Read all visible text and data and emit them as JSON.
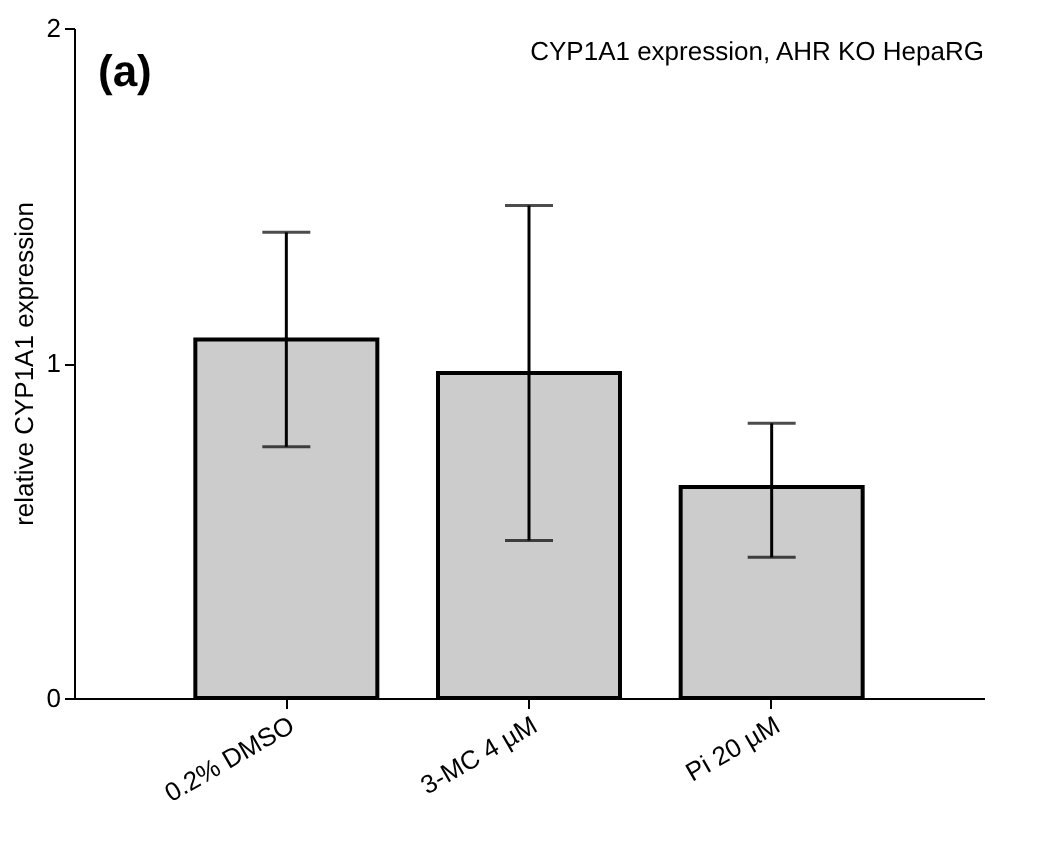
{
  "chart_data": {
    "type": "bar",
    "title": "CYP1A1 expression, AHR KO HepaRG",
    "ylabel": "relative CYP1A1 expression",
    "annotations": [
      "(a)"
    ],
    "categories": [
      "0.2% DMSO",
      "3-MC 4 µM",
      "Pi 20 µM"
    ],
    "values": [
      1.07,
      0.97,
      0.63
    ],
    "color": "#cccccc",
    "errors": [
      [
        0.75,
        1.39
      ],
      [
        0.47,
        1.47
      ],
      [
        0.42,
        0.82
      ]
    ],
    "ylim": [
      0,
      2
    ],
    "yticks": [
      0,
      1,
      2
    ],
    "grid": false
  }
}
